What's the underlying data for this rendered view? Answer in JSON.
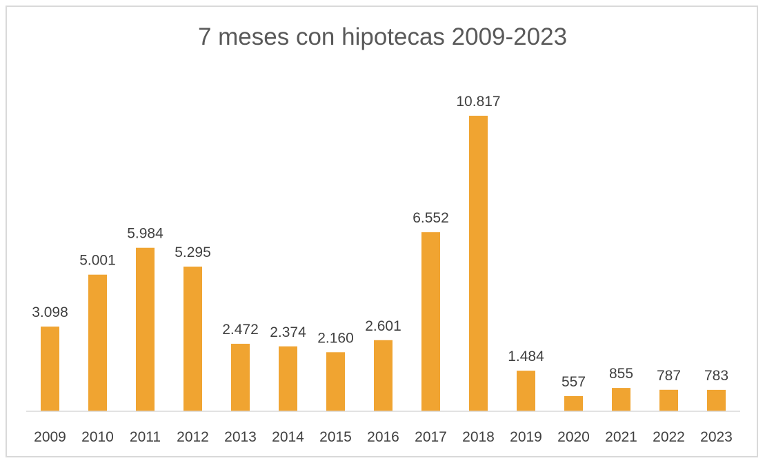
{
  "chart_data": {
    "type": "bar",
    "title": "7 meses con hipotecas 2009-2023",
    "xlabel": "",
    "ylabel": "",
    "categories": [
      "2009",
      "2010",
      "2011",
      "2012",
      "2013",
      "2014",
      "2015",
      "2016",
      "2017",
      "2018",
      "2019",
      "2020",
      "2021",
      "2022",
      "2023"
    ],
    "values": [
      3098,
      5001,
      5984,
      5295,
      2472,
      2374,
      2160,
      2601,
      6552,
      10817,
      1484,
      557,
      855,
      787,
      783
    ],
    "value_labels": [
      "3.098",
      "5.001",
      "5.984",
      "5.295",
      "2.472",
      "2.374",
      "2.160",
      "2.601",
      "6.552",
      "10.817",
      "1.484",
      "557",
      "855",
      "787",
      "783"
    ],
    "bar_color": "#f0a431",
    "axis_color": "#d9d9d9",
    "grid": false,
    "legend": "none"
  }
}
